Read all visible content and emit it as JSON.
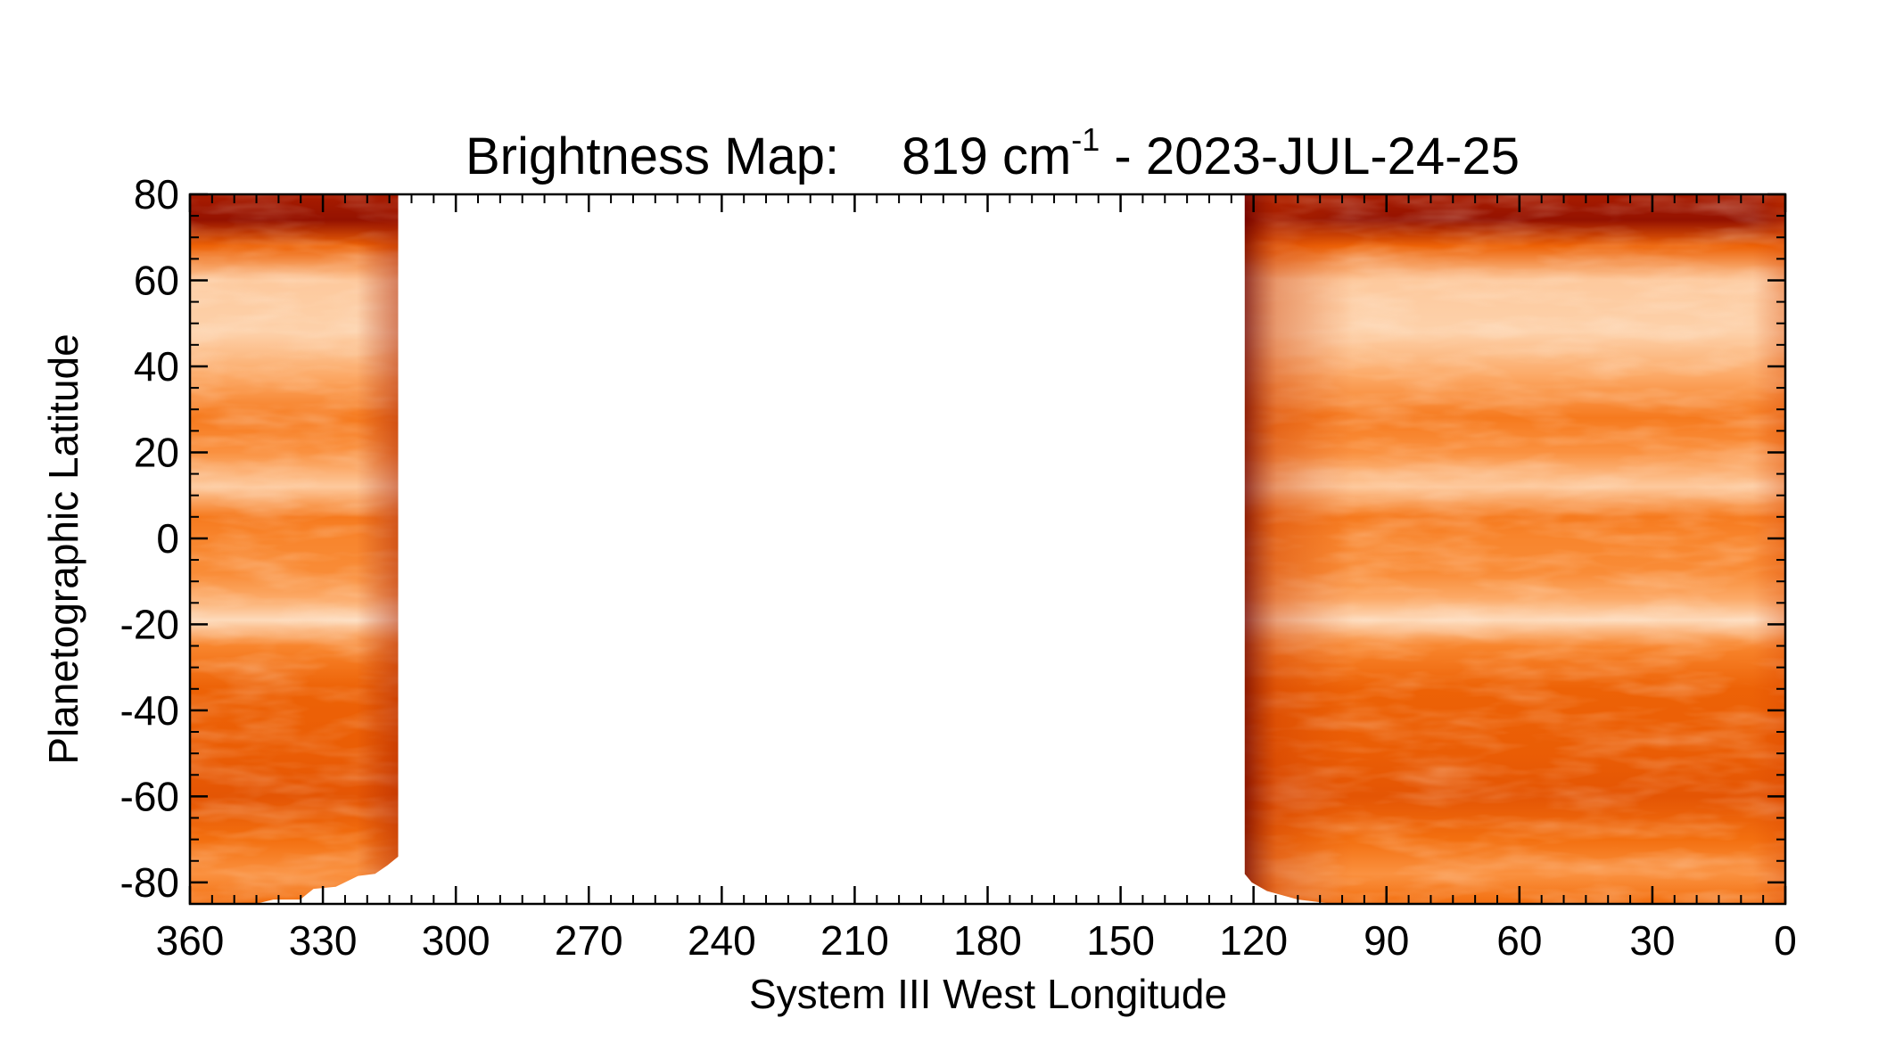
{
  "chart_data": {
    "type": "heatmap",
    "title": {
      "prefix": "Brightness Map:",
      "wavenumber": "819 cm",
      "exponent": "-1",
      "suffix": " - 2023-JUL-24-25"
    },
    "xlabel": "System III West Longitude",
    "ylabel": "Planetographic Latitude",
    "xlim": [
      360,
      0
    ],
    "ylim": [
      -85,
      80
    ],
    "x_ticks": [
      360,
      330,
      300,
      270,
      240,
      210,
      180,
      150,
      120,
      90,
      60,
      30,
      0
    ],
    "y_ticks": [
      80,
      60,
      40,
      20,
      0,
      -20,
      -40,
      -60,
      -80
    ],
    "colormap": [
      "#6b0000",
      "#a51a00",
      "#d94400",
      "#f26a08",
      "#f98a34",
      "#fcae6e",
      "#fdd3ad",
      "#fdeadc"
    ],
    "coverage": [
      {
        "lon_start": 360,
        "lon_end": 313,
        "lat_min": -85,
        "lat_max": 80
      },
      {
        "lon_start": 122,
        "lon_end": 0,
        "lat_min": -85,
        "lat_max": 80
      }
    ],
    "bands": [
      {
        "lat": 80,
        "value": 0.15
      },
      {
        "lat": 74,
        "value": 0.1
      },
      {
        "lat": 68,
        "value": 0.4
      },
      {
        "lat": 60,
        "value": 0.82
      },
      {
        "lat": 48,
        "value": 0.85
      },
      {
        "lat": 38,
        "value": 0.7
      },
      {
        "lat": 28,
        "value": 0.5
      },
      {
        "lat": 20,
        "value": 0.6
      },
      {
        "lat": 12,
        "value": 0.82
      },
      {
        "lat": 5,
        "value": 0.5
      },
      {
        "lat": 0,
        "value": 0.55
      },
      {
        "lat": -8,
        "value": 0.58
      },
      {
        "lat": -14,
        "value": 0.7
      },
      {
        "lat": -19,
        "value": 0.9
      },
      {
        "lat": -25,
        "value": 0.55
      },
      {
        "lat": -35,
        "value": 0.4
      },
      {
        "lat": -50,
        "value": 0.38
      },
      {
        "lat": -60,
        "value": 0.35
      },
      {
        "lat": -70,
        "value": 0.45
      },
      {
        "lat": -78,
        "value": 0.6
      },
      {
        "lat": -85,
        "value": 0.45
      }
    ],
    "grid": false
  }
}
